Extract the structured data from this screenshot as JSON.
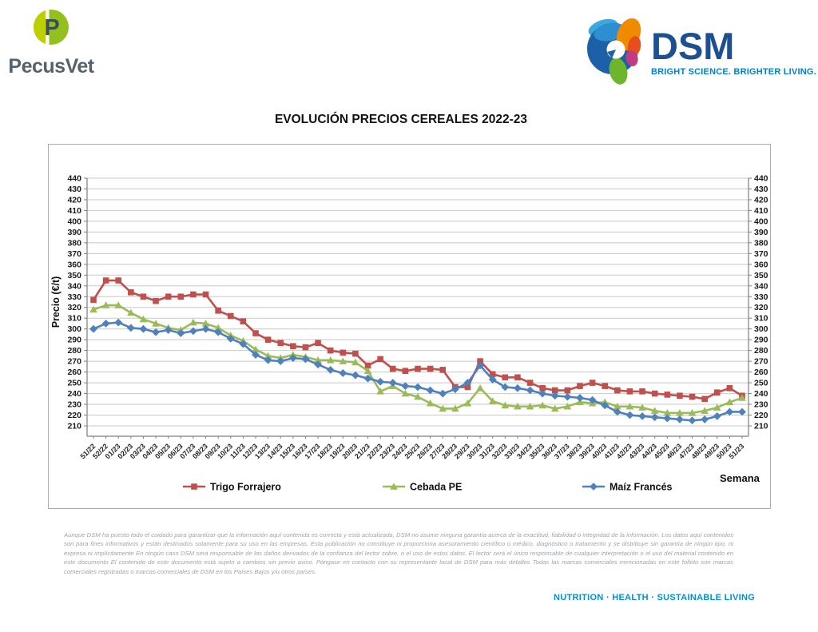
{
  "header": {
    "pecusvet": {
      "name": "PecusVet"
    },
    "dsm": {
      "name": "DSM",
      "tagline": "BRIGHT SCIENCE. BRIGHTER LIVING."
    }
  },
  "title": "EVOLUCIÓN PRECIOS CEREALES 2022-23",
  "chart_data": {
    "type": "line",
    "title": "EVOLUCIÓN PRECIOS CEREALES 2022-23",
    "xlabel": "Semana",
    "ylabel": "Precio (€/t)",
    "ylim": [
      210,
      440
    ],
    "ytick_step": 10,
    "grid": true,
    "legend_position": "bottom",
    "categories": [
      "51/22",
      "52/22",
      "01/23",
      "02/23",
      "03/23",
      "04/23",
      "05/23",
      "06/23",
      "07/23",
      "08/23",
      "09/23",
      "10/23",
      "11/23",
      "12/23",
      "13/23",
      "14/23",
      "15/23",
      "16/23",
      "17/23",
      "18/23",
      "19/23",
      "20/23",
      "21/23",
      "22/23",
      "23/23",
      "24/23",
      "25/23",
      "26/23",
      "27/23",
      "28/23",
      "29/23",
      "30/23",
      "31/23",
      "32/23",
      "33/23",
      "34/23",
      "35/23",
      "36/23",
      "37/23",
      "38/23",
      "39/23",
      "40/23",
      "41/23",
      "42/23",
      "43/23",
      "44/23",
      "45/23",
      "46/23",
      "47/23",
      "48/23",
      "49/23",
      "50/23",
      "51/23"
    ],
    "series": [
      {
        "name": "Trigo Forrajero",
        "color": "#C0504D",
        "marker": "square",
        "values": [
          327,
          345,
          345,
          334,
          330,
          326,
          330,
          330,
          332,
          332,
          317,
          312,
          307,
          296,
          290,
          287,
          284,
          283,
          287,
          280,
          278,
          277,
          266,
          272,
          263,
          261,
          263,
          263,
          262,
          246,
          246,
          270,
          258,
          255,
          255,
          250,
          245,
          243,
          243,
          247,
          250,
          247,
          243,
          242,
          242,
          240,
          239,
          238,
          237,
          235,
          241,
          245,
          238
        ]
      },
      {
        "name": "Cebada PE",
        "color": "#9BBB59",
        "marker": "triangle",
        "values": [
          318,
          322,
          322,
          315,
          309,
          305,
          301,
          299,
          306,
          305,
          301,
          294,
          289,
          281,
          275,
          273,
          276,
          274,
          271,
          271,
          270,
          269,
          261,
          242,
          247,
          240,
          237,
          231,
          226,
          226,
          231,
          245,
          233,
          229,
          228,
          228,
          229,
          226,
          228,
          232,
          231,
          232,
          228,
          228,
          227,
          224,
          222,
          222,
          222,
          224,
          227,
          232,
          236
        ]
      },
      {
        "name": "Maíz Francés",
        "color": "#4F81BD",
        "marker": "diamond",
        "values": [
          300,
          305,
          306,
          301,
          300,
          297,
          299,
          296,
          298,
          300,
          297,
          291,
          286,
          276,
          271,
          270,
          273,
          272,
          267,
          262,
          259,
          257,
          254,
          251,
          250,
          247,
          246,
          243,
          240,
          244,
          250,
          266,
          253,
          246,
          245,
          243,
          240,
          238,
          237,
          236,
          234,
          229,
          223,
          220,
          219,
          218,
          217,
          216,
          215,
          216,
          219,
          223,
          223
        ]
      }
    ]
  },
  "disclaimer": "Aunque DSM ha puesto todo el cuidado para garantizar que la información aquí contenida es correcta y está actualizada, DSM no asume ninguna garantía acerca de la exactitud, fiabilidad o integridad de la información. Los datos aquí contenidos son para fines informativos y están destinados solamente para su uso en las empresas. Esta publicación no constituye ni proporciona asesoramiento científico o médico, diagnóstico o tratamiento y se distribuye sin garantía de ningún tipo, ni expresa ni implícitamente En ningún caso DSM será responsable de los daños derivados de la confianza del lector sobre, o el uso de estos datos. El lector será el único responsable de cualquier interpretación o el uso del material contenido en este documento El contenido de este documento está sujeto a cambios sin previo aviso. Póngase en contacto con su representante local de DSM para más detalles Todas las marcas comerciales mencionadas en este folleto son marcas comerciales registradas o marcas comerciales de DSM en los Países Bajos y/u otros países.",
  "footer": {
    "tagline": "NUTRITION · HEALTH · SUSTAINABLE LIVING"
  }
}
